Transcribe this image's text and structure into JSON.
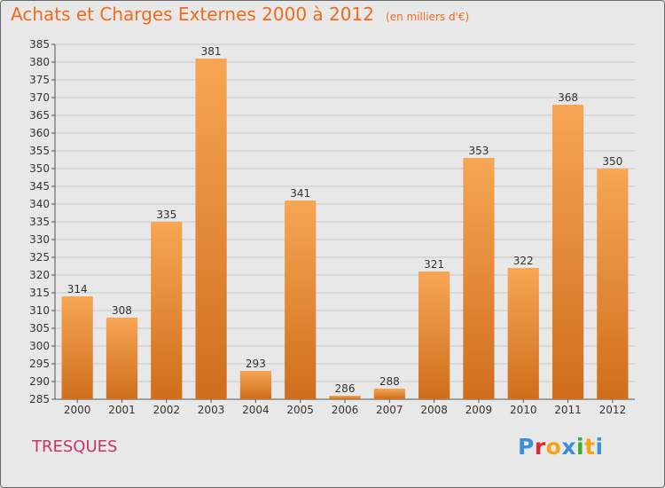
{
  "title": "Achats et Charges Externes 2000 à 2012",
  "unit_note": "(en milliers d'€)",
  "commune": "TRESQUES",
  "logo_text": "Proxiti",
  "colors": {
    "title": "#f26a1b",
    "commune": "#cc3366",
    "bar_light": "#f7a654",
    "bar_dark": "#cf6e1c",
    "grid": "#c8c8c8",
    "background": "#e8e8e8"
  },
  "chart_data": {
    "type": "bar",
    "title": "Achats et Charges Externes 2000 à 2012",
    "xlabel": "",
    "ylabel": "",
    "categories": [
      "2000",
      "2001",
      "2002",
      "2003",
      "2004",
      "2005",
      "2006",
      "2007",
      "2008",
      "2009",
      "2010",
      "2011",
      "2012"
    ],
    "values": [
      314,
      308,
      335,
      381,
      293,
      341,
      286,
      288,
      321,
      353,
      322,
      368,
      350
    ],
    "ylim": [
      285,
      385
    ],
    "ytick_step": 5,
    "grid": true,
    "legend": "none"
  }
}
